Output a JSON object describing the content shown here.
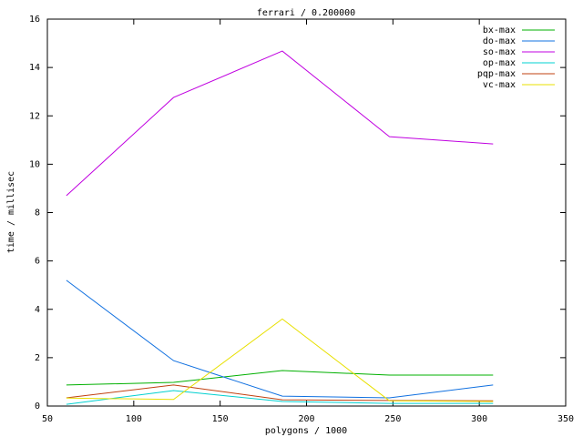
{
  "chart_data": {
    "type": "line",
    "title": "ferrari / 0.200000",
    "x_label": "polygons / 1000",
    "y_label": "time / millisec",
    "x": [
      61,
      123,
      186,
      248,
      308
    ],
    "series": [
      {
        "name": "bx-max",
        "color": "#00b000",
        "values": [
          0.87,
          0.98,
          1.47,
          1.28,
          1.28
        ]
      },
      {
        "name": "do-max",
        "color": "#1070e0",
        "values": [
          5.2,
          1.88,
          0.41,
          0.34,
          0.87
        ]
      },
      {
        "name": "so-max",
        "color": "#c000e0",
        "values": [
          8.7,
          12.76,
          14.68,
          11.14,
          10.84
        ]
      },
      {
        "name": "op-max",
        "color": "#00d0d0",
        "values": [
          0.07,
          0.64,
          0.19,
          0.11,
          0.11
        ]
      },
      {
        "name": "pqp-max",
        "color": "#c04010",
        "values": [
          0.34,
          0.87,
          0.26,
          0.23,
          0.22
        ]
      },
      {
        "name": "vc-max",
        "color": "#e8e000",
        "values": [
          0.33,
          0.27,
          3.6,
          0.22,
          0.19
        ]
      }
    ],
    "xlim": [
      50,
      350
    ],
    "xticks": [
      50,
      100,
      150,
      200,
      250,
      300,
      350
    ],
    "ylim": [
      0,
      16
    ],
    "yticks": [
      0,
      2,
      4,
      6,
      8,
      10,
      12,
      14,
      16
    ],
    "grid": false,
    "legend_position": "top-right"
  }
}
